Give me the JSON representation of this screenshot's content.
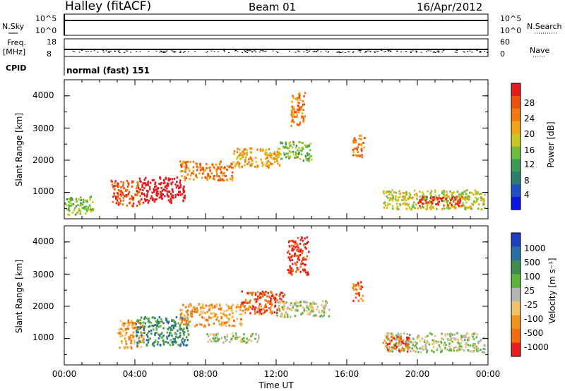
{
  "header": {
    "station": "Halley (fitACF)",
    "beam": "Beam 01",
    "date": "16/Apr/2012"
  },
  "noise_panel": {
    "left_label": "N.Sky",
    "left_ticks": [
      "10^5",
      "10^0"
    ],
    "right_label": "N.Search",
    "right_ticks": [
      "10^5",
      "10^0"
    ]
  },
  "freq_panel": {
    "left_label_1": "Freq.",
    "left_label_2": "[MHz]",
    "left_ticks": [
      "18",
      "8"
    ],
    "right_label": "Nave",
    "right_ticks": [
      "60",
      "0"
    ]
  },
  "cpid": {
    "label": "CPID",
    "value": "normal (fast) 151"
  },
  "chart_data": [
    {
      "type": "heatmap",
      "quantity": "Power",
      "ylabel": "Slant Range [km]",
      "ylim": [
        180,
        4500
      ],
      "yticks": [
        "1000",
        "2000",
        "3000",
        "4000"
      ],
      "xlim_hours": [
        0,
        24
      ],
      "colorbar_label": "Power [dB]",
      "colorbar_ticks": [
        "4",
        "8",
        "12",
        "16",
        "20",
        "24",
        "28"
      ],
      "colorbar_colors": [
        "#0a14e6",
        "#1e4fc8",
        "#2e7b6f",
        "#3d9a55",
        "#6cbf3c",
        "#c9c823",
        "#f1a414",
        "#f37a0c",
        "#ee4f0d",
        "#e31a1c"
      ],
      "blobs": [
        {
          "t0": 0,
          "t1": 1.6,
          "r0": 300,
          "r1": 900,
          "level": 4
        },
        {
          "t0": 2.6,
          "t1": 4.3,
          "r0": 600,
          "r1": 1400,
          "level": 8
        },
        {
          "t0": 4.2,
          "t1": 6.8,
          "r0": 700,
          "r1": 1500,
          "level": 10
        },
        {
          "t0": 6.5,
          "t1": 9.5,
          "r0": 1400,
          "r1": 2000,
          "level": 7
        },
        {
          "t0": 9.5,
          "t1": 12.2,
          "r0": 1800,
          "r1": 2400,
          "level": 6
        },
        {
          "t0": 12.2,
          "t1": 14,
          "r0": 2000,
          "r1": 2600,
          "level": 4
        },
        {
          "t0": 12.8,
          "t1": 13.6,
          "r0": 3100,
          "r1": 4200,
          "level": 7
        },
        {
          "t0": 16.3,
          "t1": 17,
          "r0": 2100,
          "r1": 2800,
          "level": 7
        },
        {
          "t0": 18,
          "t1": 23.8,
          "r0": 500,
          "r1": 1100,
          "level": 5
        },
        {
          "t0": 20,
          "t1": 22.5,
          "r0": 600,
          "r1": 900,
          "level": 9
        }
      ]
    },
    {
      "type": "heatmap",
      "quantity": "Velocity",
      "ylabel": "Slant Range [km]",
      "ylim": [
        180,
        4500
      ],
      "yticks": [
        "1000",
        "2000",
        "3000",
        "4000"
      ],
      "xlim_hours": [
        0,
        24
      ],
      "xticks": [
        "00:00",
        "04:00",
        "08:00",
        "12:00",
        "16:00",
        "20:00",
        "00:00"
      ],
      "xlabel": "Time UT",
      "colorbar_label": "Velocity [m s⁻¹]",
      "colorbar_ticks": [
        "1000",
        "500",
        "100",
        "25",
        "-25",
        "-100",
        "-500",
        "-1000"
      ],
      "colorbar_colors": [
        "#1f3ec2",
        "#2a6fa5",
        "#3d8e4d",
        "#5cb43b",
        "#b5b5b5",
        "#f2c26a",
        "#f2961a",
        "#f26b0d",
        "#e81e1e"
      ],
      "blobs": [
        {
          "t0": 3,
          "t1": 4.5,
          "r0": 700,
          "r1": 1600,
          "level": 6
        },
        {
          "t0": 4,
          "t1": 7,
          "r0": 800,
          "r1": 1700,
          "level": 2
        },
        {
          "t0": 6.5,
          "t1": 10,
          "r0": 1400,
          "r1": 2100,
          "level": 6
        },
        {
          "t0": 10,
          "t1": 12.5,
          "r0": 1800,
          "r1": 2500,
          "level": 7
        },
        {
          "t0": 8,
          "t1": 11,
          "r0": 900,
          "r1": 1200,
          "level": 4
        },
        {
          "t0": 12.6,
          "t1": 13.8,
          "r0": 3000,
          "r1": 4200,
          "level": 8
        },
        {
          "t0": 12,
          "t1": 15,
          "r0": 1700,
          "r1": 2200,
          "level": 4
        },
        {
          "t0": 16.3,
          "t1": 16.9,
          "r0": 2200,
          "r1": 2800,
          "level": 7
        },
        {
          "t0": 18.2,
          "t1": 23.8,
          "r0": 600,
          "r1": 1200,
          "level": 4
        },
        {
          "t0": 18,
          "t1": 19.5,
          "r0": 600,
          "r1": 1100,
          "level": 7
        }
      ]
    }
  ]
}
